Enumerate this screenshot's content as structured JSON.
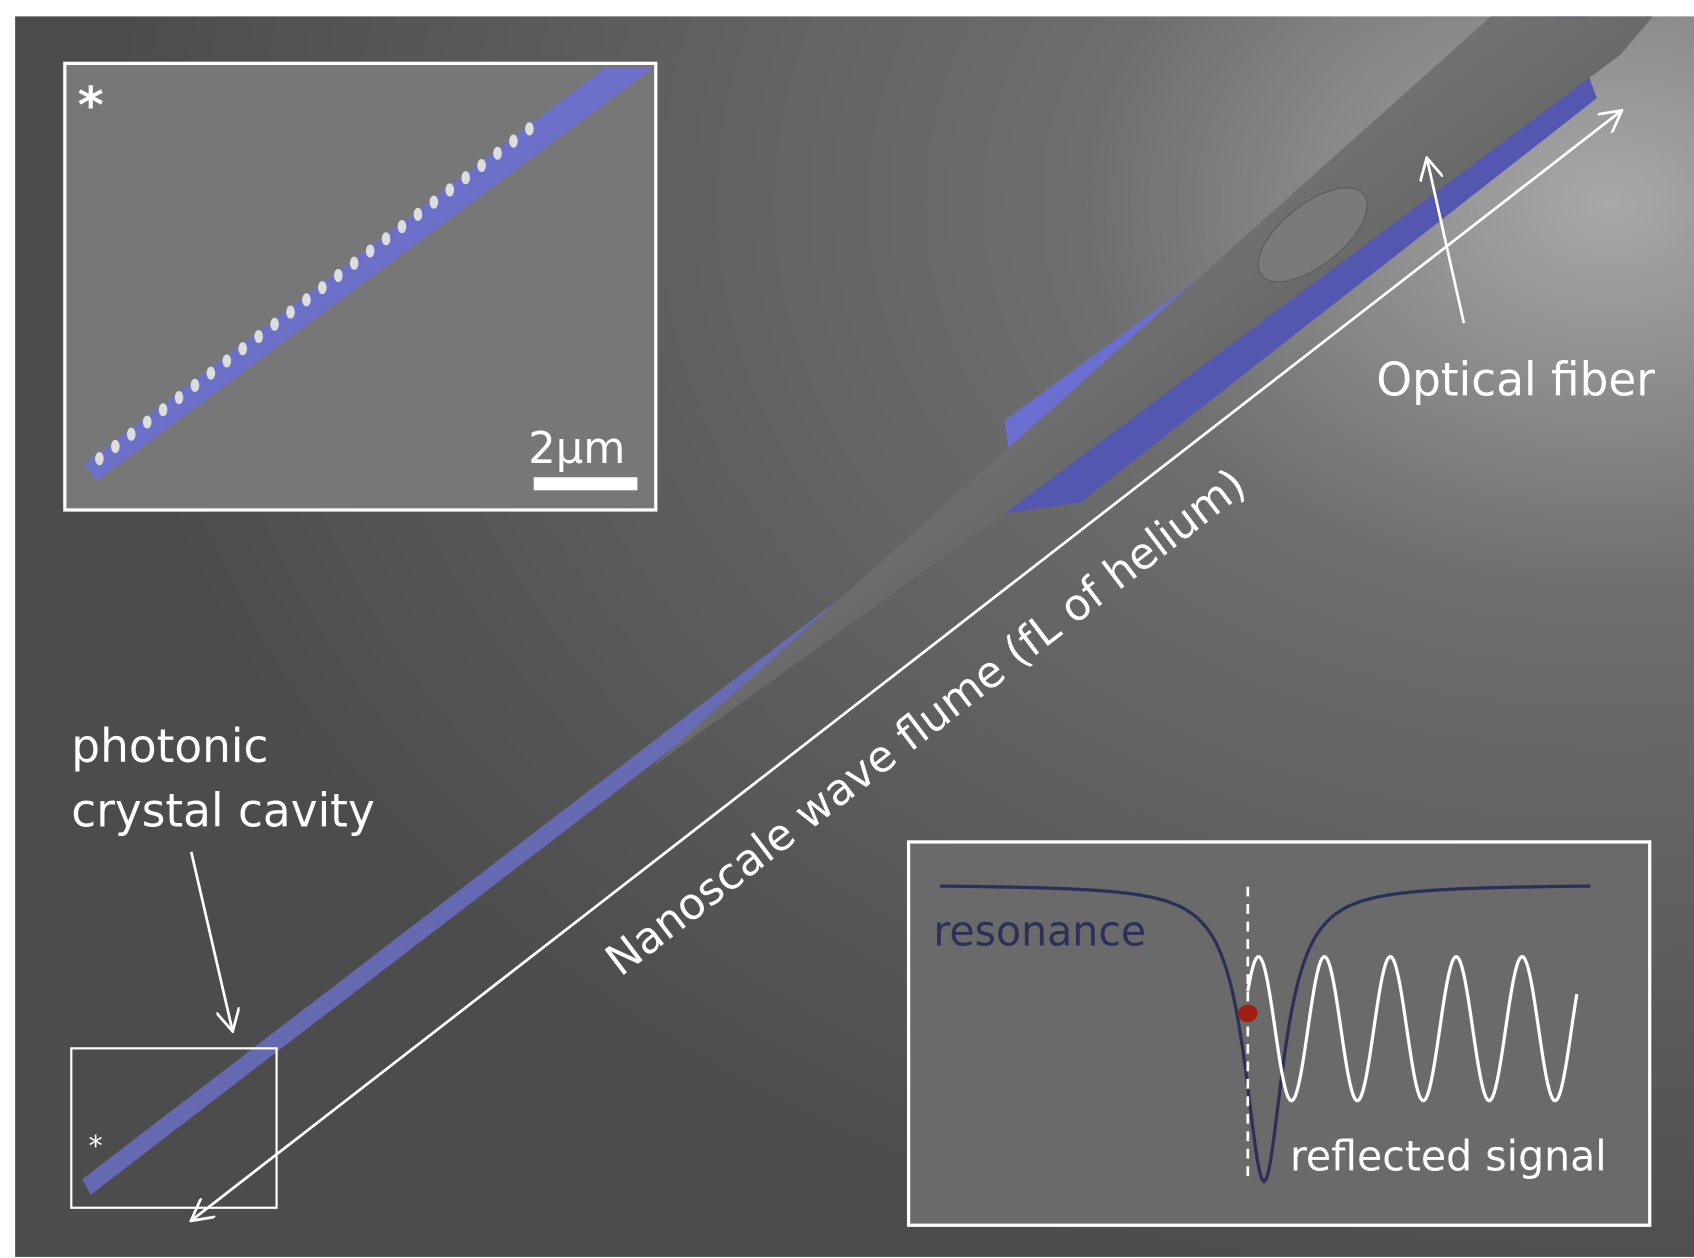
{
  "figure": {
    "inset_sem": {
      "marker": "*",
      "scale_bar_label": "2µm"
    },
    "labels": {
      "optical_fiber": "Optical fiber",
      "photonic_line1": "photonic",
      "photonic_line2": "crystal cavity",
      "flume": "Nanoscale wave flume (fL of helium)",
      "zoom_marker": "*"
    },
    "signal_inset": {
      "resonance_label": "resonance",
      "reflected_label": "reflected signal"
    },
    "colors": {
      "background": "#545454",
      "device_blue": "#6b6fd0",
      "resonance_curve": "#2a3058",
      "operating_point": "#a01d12",
      "annotation": "#ffffff"
    }
  }
}
